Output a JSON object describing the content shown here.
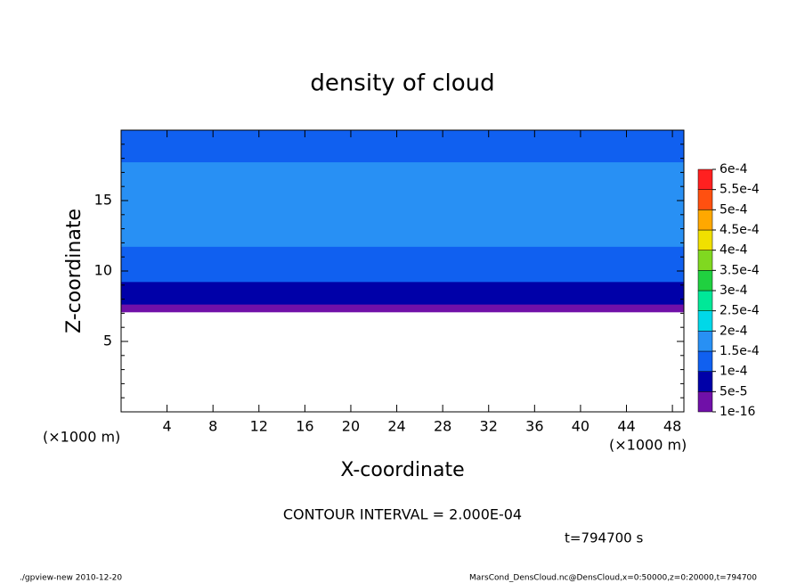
{
  "chart_data": {
    "type": "contour",
    "title": "density of cloud",
    "xlabel": "X-coordinate",
    "ylabel": "Z-coordinate",
    "x_unit": "(×1000 m)",
    "xlim": [
      0,
      49
    ],
    "ylim": [
      0,
      20
    ],
    "xticks": [
      4,
      8,
      12,
      16,
      20,
      24,
      28,
      32,
      36,
      40,
      44,
      48
    ],
    "yticks": [
      5,
      10,
      15
    ],
    "yminor_ticks": [
      1,
      2,
      3,
      4,
      6,
      7,
      8,
      9,
      11,
      12,
      13,
      14,
      16,
      17,
      18,
      19
    ],
    "z": [
      7.1,
      7.5,
      7.8,
      8.2,
      8.6,
      9.0,
      9.5,
      10.0,
      10.5,
      11.0,
      11.5,
      12.0,
      13,
      14,
      15,
      16,
      17,
      17.5,
      18,
      19,
      20
    ],
    "values": [
      2e-05,
      3e-05,
      5.5e-05,
      7e-05,
      8.5e-05,
      9.5e-05,
      0.000105,
      0.000115,
      0.000125,
      0.000135,
      0.000145,
      0.000155,
      0.000165,
      0.00017,
      0.000175,
      0.00017,
      0.00016,
      0.00015,
      0.00014,
      0.00013,
      0.000125
    ],
    "levels": [
      {
        "value": 1e-16,
        "label": "1e-16"
      },
      {
        "value": 5e-05,
        "label": "5e-5"
      },
      {
        "value": 0.0001,
        "label": "1e-4"
      },
      {
        "value": 0.00015,
        "label": "1.5e-4"
      },
      {
        "value": 0.0002,
        "label": "2e-4"
      },
      {
        "value": 0.00025,
        "label": "2.5e-4"
      },
      {
        "value": 0.0003,
        "label": "3e-4"
      },
      {
        "value": 0.00035,
        "label": "3.5e-4"
      },
      {
        "value": 0.0004,
        "label": "4e-4"
      },
      {
        "value": 0.00045,
        "label": "4.5e-4"
      },
      {
        "value": 0.0005,
        "label": "5e-4"
      },
      {
        "value": 0.00055,
        "label": "5.5e-4"
      },
      {
        "value": 0.0006,
        "label": "6e-4"
      }
    ],
    "level_colors": [
      "#7010a8",
      "#0000a8",
      "#1060f0",
      "#2890f4",
      "#00d8e8",
      "#00e898",
      "#20d040",
      "#80d820",
      "#f0e000",
      "#ffa800",
      "#ff5010",
      "#ff2020",
      "#ff9090"
    ],
    "contour_interval": "CONTOUR INTERVAL = 2.000E-04",
    "time": "t=794700 s",
    "footer_left": "./gpview-new   2010-12-20",
    "footer_right": "MarsCond_DensCloud.nc@DensCloud,x=0:50000,z=0:20000,t=794700"
  }
}
